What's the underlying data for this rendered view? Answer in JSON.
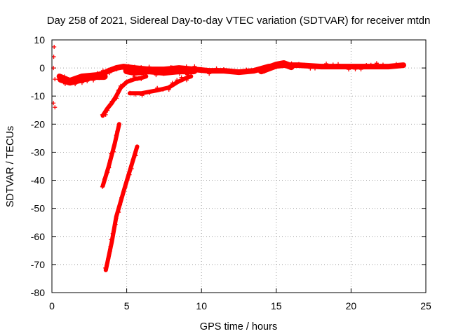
{
  "chart_data": {
    "type": "scatter",
    "title": "Day 258 of 2021, Sidereal Day-to-day VTEC variation (SDTVAR) for receiver mtdn",
    "xlabel": "GPS time / hours",
    "ylabel": "SDTVAR / TECUs",
    "xlim": [
      0,
      25
    ],
    "ylim": [
      -80,
      10
    ],
    "xticks": [
      "0",
      "5",
      "10",
      "15",
      "20",
      "25"
    ],
    "yticks": [
      "10",
      "0",
      "-10",
      "-20",
      "-30",
      "-40",
      "-50",
      "-60",
      "-70",
      "-80"
    ],
    "grid": true,
    "marker": "+",
    "color": "#ff0000",
    "series": [
      {
        "name": "scattered-early",
        "points": [
          [
            0.15,
            7.5
          ],
          [
            0.12,
            4
          ],
          [
            0.1,
            0
          ],
          [
            0.2,
            -4
          ],
          [
            0.1,
            -12.5
          ],
          [
            0.2,
            -14
          ]
        ]
      },
      {
        "name": "main-track",
        "segments": [
          [
            [
              0.5,
              -3
            ],
            [
              1.2,
              -4.5
            ],
            [
              2.0,
              -3
            ],
            [
              3.0,
              -2.5
            ],
            [
              3.4,
              -2
            ],
            [
              3.8,
              -1
            ],
            [
              4.3,
              0
            ],
            [
              4.8,
              0.5
            ],
            [
              5.5,
              0
            ],
            [
              6.5,
              -0.5
            ],
            [
              7.5,
              -0.5
            ],
            [
              8.5,
              0
            ],
            [
              9.5,
              -0.5
            ],
            [
              10.5,
              -1
            ],
            [
              11.5,
              -1
            ],
            [
              12.5,
              -1.5
            ],
            [
              13.5,
              -1
            ],
            [
              14.5,
              0.5
            ],
            [
              15.5,
              1
            ],
            [
              16.5,
              1
            ],
            [
              18,
              0.5
            ],
            [
              19.5,
              0.5
            ],
            [
              21,
              0.5
            ],
            [
              22.5,
              0.5
            ],
            [
              23.5,
              1
            ]
          ]
        ]
      },
      {
        "name": "upper-thick-band",
        "segments": [
          [
            [
              0.6,
              -4
            ],
            [
              1.2,
              -5
            ],
            [
              2.0,
              -4
            ],
            [
              2.8,
              -3
            ],
            [
              3.5,
              -3
            ]
          ],
          [
            [
              5.0,
              -1
            ],
            [
              5.5,
              -1.5
            ],
            [
              6.5,
              -1
            ],
            [
              7.5,
              -1.5
            ],
            [
              8.5,
              -1
            ],
            [
              9.5,
              -1
            ]
          ],
          [
            [
              14.0,
              -1
            ],
            [
              14.5,
              0
            ],
            [
              15.0,
              1
            ],
            [
              15.5,
              1.5
            ],
            [
              16.0,
              0.5
            ]
          ]
        ]
      },
      {
        "name": "decreasing-arc",
        "segments": [
          [
            [
              3.4,
              -17
            ],
            [
              3.7,
              -14.5
            ],
            [
              4.0,
              -12.5
            ],
            [
              4.3,
              -10
            ],
            [
              4.6,
              -7
            ],
            [
              5.0,
              -5
            ],
            [
              5.5,
              -4
            ],
            [
              6.0,
              -3.5
            ],
            [
              6.3,
              -3
            ]
          ]
        ]
      },
      {
        "name": "lower-arc",
        "segments": [
          [
            [
              5.2,
              -9
            ],
            [
              6.0,
              -9
            ],
            [
              7.0,
              -8
            ],
            [
              7.8,
              -7
            ],
            [
              8.4,
              -5
            ],
            [
              9.0,
              -3.5
            ],
            [
              9.3,
              -3
            ]
          ]
        ]
      },
      {
        "name": "steep-segment-a",
        "segments": [
          [
            [
              3.4,
              -42
            ],
            [
              3.8,
              -35
            ],
            [
              4.2,
              -27
            ],
            [
              4.5,
              -20
            ]
          ]
        ]
      },
      {
        "name": "steep-segment-b",
        "segments": [
          [
            [
              3.6,
              -72
            ],
            [
              4.0,
              -62
            ],
            [
              4.3,
              -53
            ],
            [
              4.9,
              -42
            ],
            [
              5.3,
              -35
            ],
            [
              5.7,
              -28
            ]
          ]
        ]
      }
    ]
  }
}
